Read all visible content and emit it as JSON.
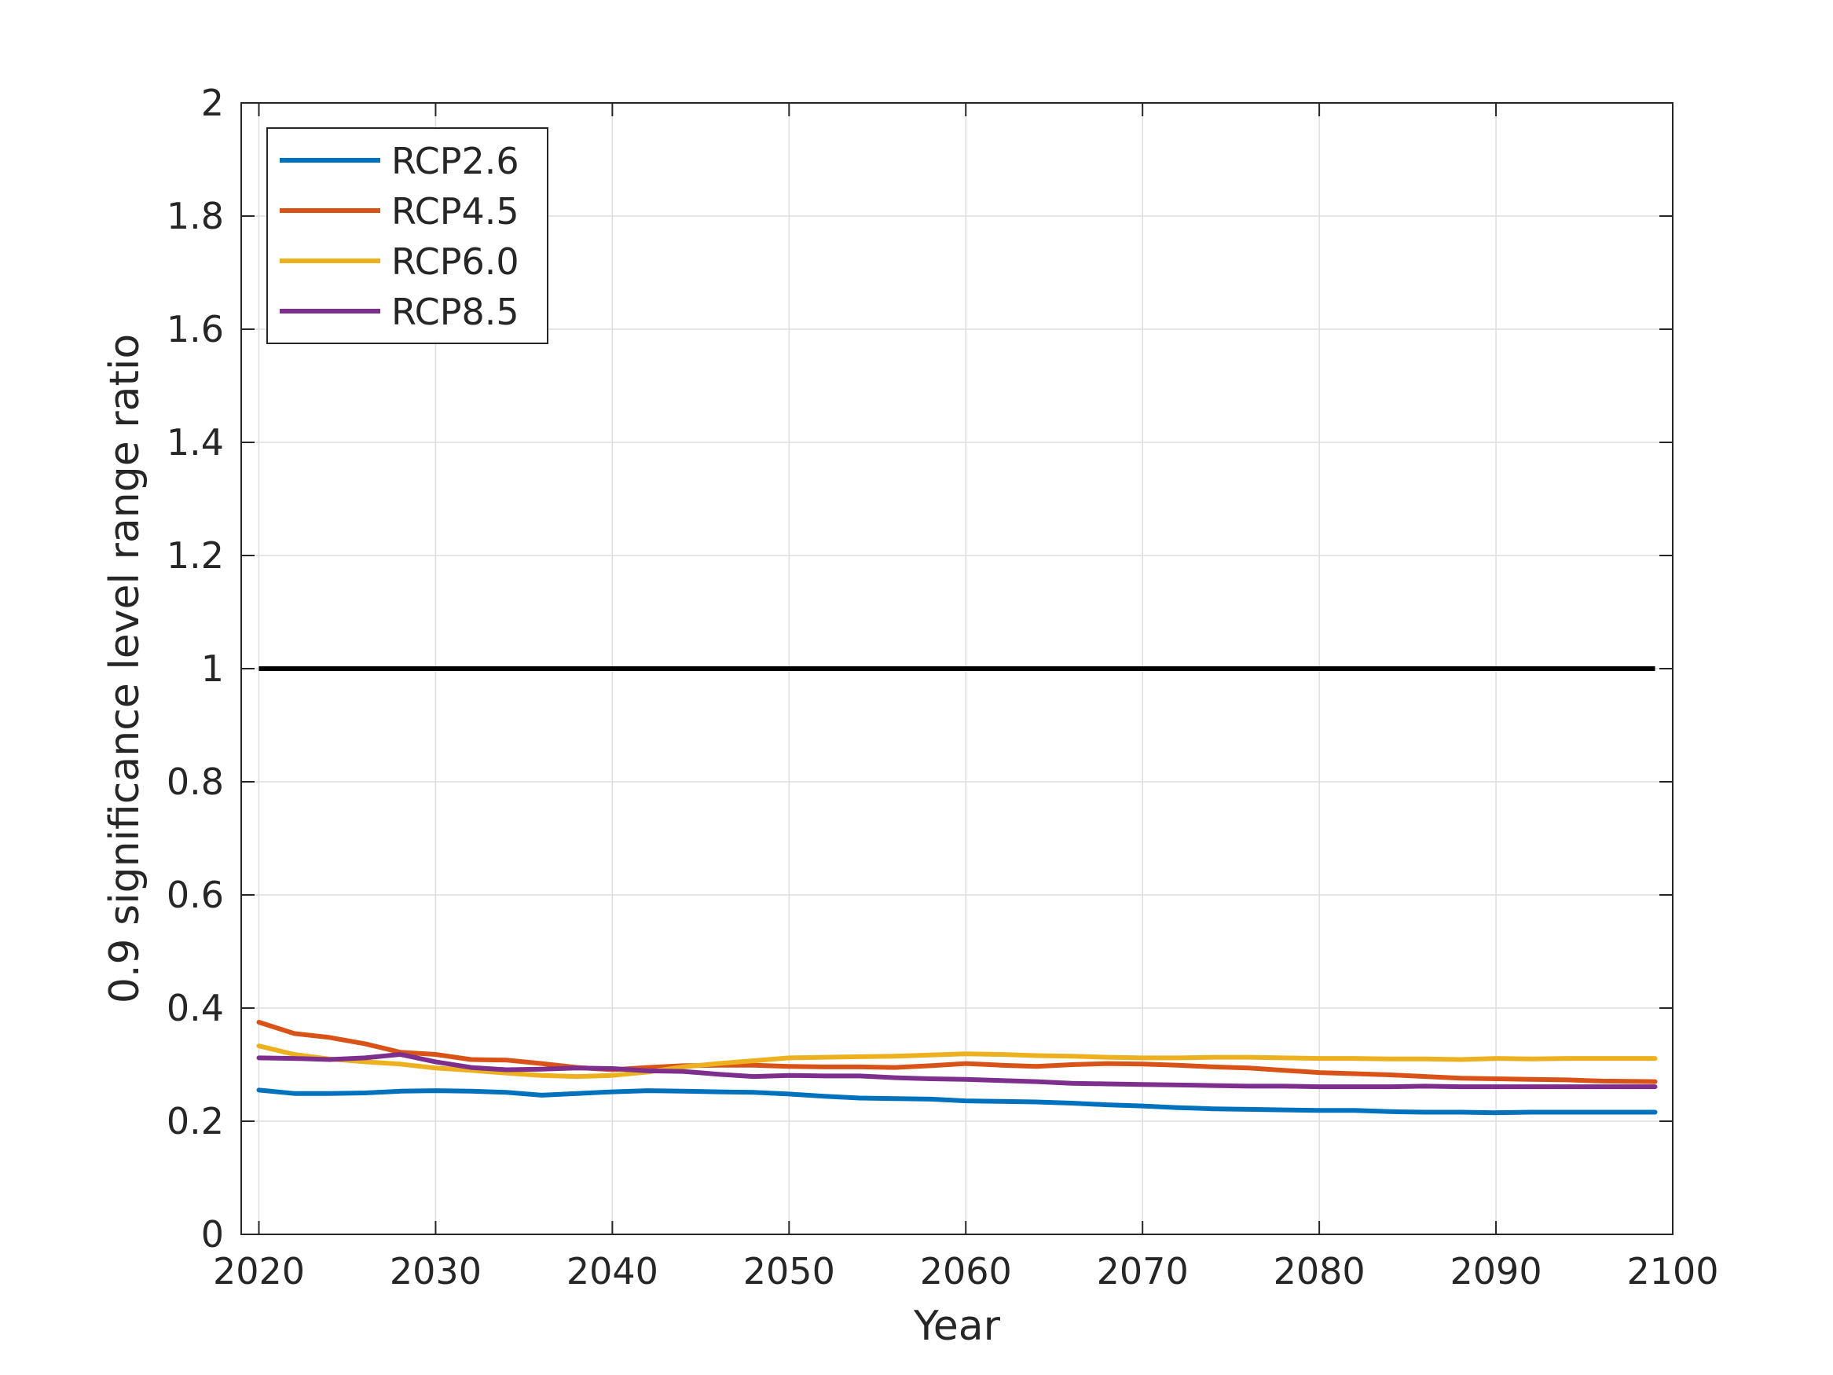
{
  "chart_data": {
    "type": "line",
    "xlabel": "Year",
    "ylabel": "0.9 significance level range ratio",
    "xlim": [
      2019,
      2100
    ],
    "ylim": [
      0,
      2
    ],
    "xticks": [
      2020,
      2030,
      2040,
      2050,
      2060,
      2070,
      2080,
      2090,
      2100
    ],
    "yticks": [
      0,
      0.2,
      0.4,
      0.6,
      0.8,
      1,
      1.2,
      1.4,
      1.6,
      1.8,
      2
    ],
    "xtick_labels": [
      "2020",
      "2030",
      "2040",
      "2050",
      "2060",
      "2070",
      "2080",
      "2090",
      "2100"
    ],
    "ytick_labels": [
      "0",
      "0.2",
      "0.4",
      "0.6",
      "0.8",
      "1",
      "1.2",
      "1.4",
      "1.6",
      "1.8",
      "2"
    ],
    "grid": true,
    "legend_location": "top-left",
    "reference_line": {
      "y": 1,
      "x": [
        2020,
        2099
      ],
      "color": "#000000"
    },
    "series": [
      {
        "name": "RCP2.6",
        "color": "#0072BD",
        "x": [
          2020,
          2022,
          2024,
          2026,
          2028,
          2030,
          2032,
          2034,
          2036,
          2038,
          2040,
          2042,
          2044,
          2046,
          2048,
          2050,
          2052,
          2054,
          2056,
          2058,
          2060,
          2062,
          2064,
          2066,
          2068,
          2070,
          2072,
          2074,
          2076,
          2078,
          2080,
          2082,
          2084,
          2086,
          2088,
          2090,
          2092,
          2094,
          2096,
          2099
        ],
        "values": [
          0.255,
          0.249,
          0.249,
          0.25,
          0.253,
          0.254,
          0.253,
          0.251,
          0.246,
          0.249,
          0.252,
          0.254,
          0.253,
          0.252,
          0.251,
          0.248,
          0.244,
          0.241,
          0.24,
          0.239,
          0.236,
          0.235,
          0.234,
          0.232,
          0.229,
          0.227,
          0.224,
          0.222,
          0.221,
          0.22,
          0.219,
          0.219,
          0.217,
          0.216,
          0.216,
          0.215,
          0.216,
          0.216,
          0.216,
          0.216
        ]
      },
      {
        "name": "RCP4.5",
        "color": "#D95319",
        "x": [
          2020,
          2022,
          2024,
          2026,
          2028,
          2030,
          2032,
          2034,
          2036,
          2038,
          2040,
          2042,
          2044,
          2046,
          2048,
          2050,
          2052,
          2054,
          2056,
          2058,
          2060,
          2062,
          2064,
          2066,
          2068,
          2070,
          2072,
          2074,
          2076,
          2078,
          2080,
          2082,
          2084,
          2086,
          2088,
          2090,
          2092,
          2094,
          2096,
          2099
        ],
        "values": [
          0.375,
          0.355,
          0.348,
          0.337,
          0.322,
          0.318,
          0.309,
          0.308,
          0.302,
          0.295,
          0.291,
          0.295,
          0.298,
          0.299,
          0.299,
          0.297,
          0.296,
          0.296,
          0.295,
          0.298,
          0.302,
          0.299,
          0.297,
          0.3,
          0.302,
          0.301,
          0.299,
          0.296,
          0.294,
          0.29,
          0.286,
          0.284,
          0.282,
          0.279,
          0.276,
          0.275,
          0.274,
          0.273,
          0.271,
          0.27
        ]
      },
      {
        "name": "RCP6.0",
        "color": "#EDB120",
        "x": [
          2020,
          2022,
          2024,
          2026,
          2028,
          2030,
          2032,
          2034,
          2036,
          2038,
          2040,
          2042,
          2044,
          2046,
          2048,
          2050,
          2052,
          2054,
          2056,
          2058,
          2060,
          2062,
          2064,
          2066,
          2068,
          2070,
          2072,
          2074,
          2076,
          2078,
          2080,
          2082,
          2084,
          2086,
          2088,
          2090,
          2092,
          2094,
          2096,
          2099
        ],
        "values": [
          0.333,
          0.318,
          0.31,
          0.305,
          0.301,
          0.294,
          0.29,
          0.285,
          0.281,
          0.279,
          0.281,
          0.287,
          0.296,
          0.302,
          0.307,
          0.312,
          0.313,
          0.314,
          0.315,
          0.317,
          0.319,
          0.318,
          0.316,
          0.315,
          0.313,
          0.312,
          0.312,
          0.313,
          0.313,
          0.312,
          0.311,
          0.311,
          0.31,
          0.31,
          0.309,
          0.311,
          0.31,
          0.311,
          0.311,
          0.311
        ]
      },
      {
        "name": "RCP8.5",
        "color": "#7E2F8E",
        "x": [
          2020,
          2022,
          2024,
          2026,
          2028,
          2030,
          2032,
          2034,
          2036,
          2038,
          2040,
          2042,
          2044,
          2046,
          2048,
          2050,
          2052,
          2054,
          2056,
          2058,
          2060,
          2062,
          2064,
          2066,
          2068,
          2070,
          2072,
          2074,
          2076,
          2078,
          2080,
          2082,
          2084,
          2086,
          2088,
          2090,
          2092,
          2094,
          2096,
          2099
        ],
        "values": [
          0.312,
          0.311,
          0.309,
          0.312,
          0.318,
          0.305,
          0.295,
          0.291,
          0.292,
          0.294,
          0.293,
          0.289,
          0.288,
          0.283,
          0.279,
          0.281,
          0.28,
          0.28,
          0.277,
          0.275,
          0.274,
          0.272,
          0.27,
          0.267,
          0.266,
          0.265,
          0.264,
          0.263,
          0.262,
          0.262,
          0.261,
          0.261,
          0.261,
          0.262,
          0.261,
          0.261,
          0.261,
          0.261,
          0.261,
          0.261
        ]
      }
    ]
  }
}
